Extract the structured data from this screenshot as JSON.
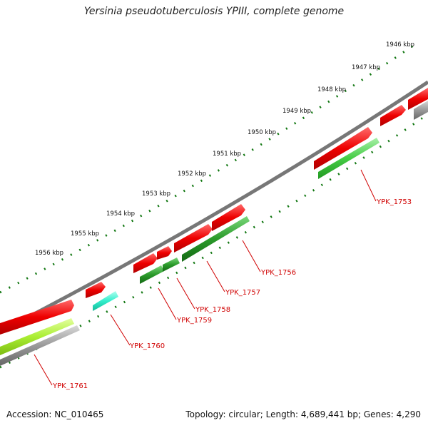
{
  "title": "Yersinia pseudotuberculosis YPIII, complete genome",
  "footer": {
    "accession": "Accession: NC_010465",
    "summary": "Topology: circular; Length: 4,689,441 bp; Genes: 4,290"
  },
  "colors": {
    "backbone": "#777777",
    "forward_gene": "#ee0000",
    "reverse_gene": "#22aa22",
    "tick": "#117711",
    "label": "#d00000"
  },
  "kbp_labels": [
    "1946 kbp",
    "1947 kbp",
    "1948 kbp",
    "1949 kbp",
    "1950 kbp",
    "1951 kbp",
    "1952 kbp",
    "1953 kbp",
    "1954 kbp",
    "1955 kbp",
    "1956 kbp"
  ],
  "gene_labels": [
    "YPK_1753",
    "YPK_1756",
    "YPK_1757",
    "YPK_1758",
    "YPK_1759",
    "YPK_1760",
    "YPK_1761"
  ]
}
